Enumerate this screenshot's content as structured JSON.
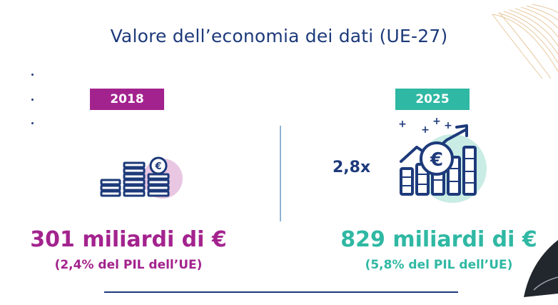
{
  "title": "Valore dell’economia dei dati (UE-27)",
  "colors": {
    "navy": "#1d3a7a",
    "magenta": "#a3238e",
    "teal": "#2fb8a3"
  },
  "left_panel": {
    "year": "2018",
    "icon": "coin-stacks-euro-icon",
    "value": "301 miliardi di €",
    "subtext": "(2,4% del PIL dell’UE)"
  },
  "right_panel": {
    "year": "2025",
    "icon": "euro-growth-chart-icon",
    "multiplier": "2,8x",
    "value": "829 miliardi di €",
    "subtext": "(5,8% del PIL dell’UE)"
  }
}
